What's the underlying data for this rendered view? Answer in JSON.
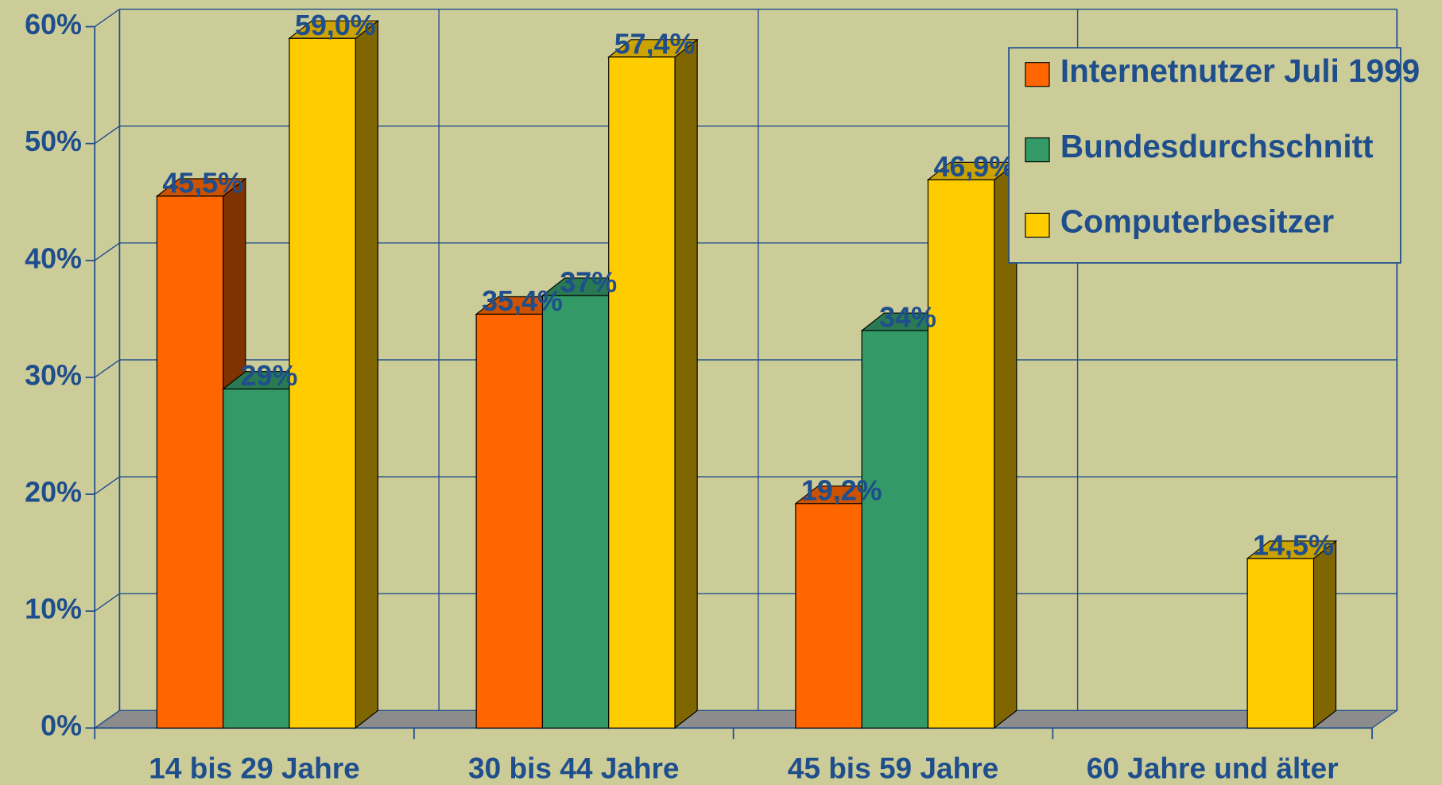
{
  "chart_data": {
    "type": "bar3d",
    "categories": [
      "14 bis 29 Jahre",
      "30 bis 44 Jahre",
      "45 bis 59 Jahre",
      "60 Jahre und älter"
    ],
    "series": [
      {
        "name": "Internetnutzer Juli 1999",
        "color": "#ff6600",
        "values": [
          45.5,
          35.4,
          19.2,
          null
        ],
        "value_labels": [
          "45,5%",
          "35,4%",
          "19,2%",
          null
        ]
      },
      {
        "name": "Bundesdurchschnitt",
        "color": "#339966",
        "values": [
          29,
          37,
          34,
          null
        ],
        "value_labels": [
          "29%",
          "37%",
          "34%",
          null
        ]
      },
      {
        "name": "Computerbesitzer",
        "color": "#ffcc00",
        "values": [
          59.0,
          57.4,
          46.9,
          14.5
        ],
        "value_labels": [
          "59,0%",
          "57,4%",
          "46,9%",
          "14,5%"
        ]
      }
    ],
    "ylim": [
      0,
      60
    ],
    "yticks": [
      {
        "value": 0,
        "label": "0%"
      },
      {
        "value": 10,
        "label": "10%"
      },
      {
        "value": 20,
        "label": "20%"
      },
      {
        "value": 30,
        "label": "30%"
      },
      {
        "value": 40,
        "label": "40%"
      },
      {
        "value": 50,
        "label": "50%"
      },
      {
        "value": 60,
        "label": "60%"
      }
    ],
    "grid": true,
    "legend": "upper right"
  }
}
